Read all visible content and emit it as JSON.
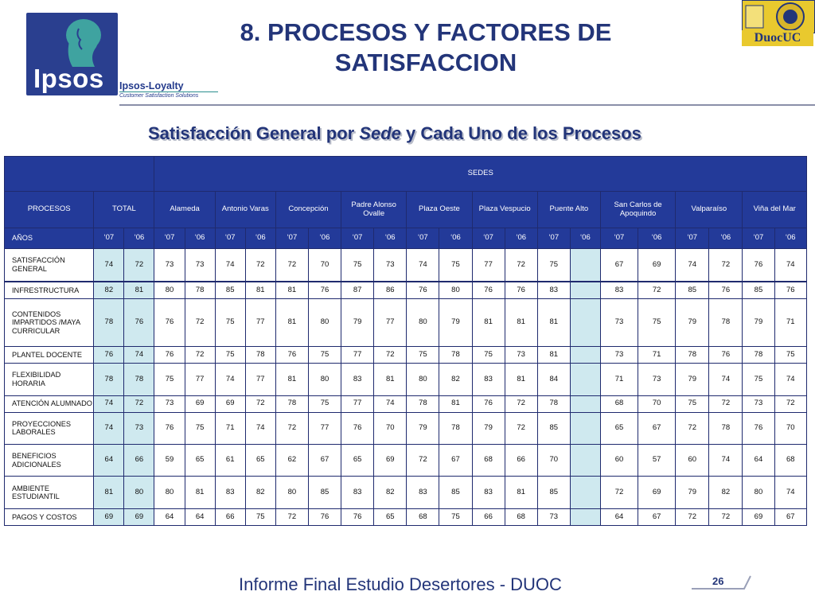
{
  "header": {
    "title_line1": "8. PROCESOS Y FACTORES DE",
    "title_line2": "SATISFACCION",
    "subtitle_pre": "Satisfacción General por ",
    "subtitle_em": "Sede",
    "subtitle_post": " y Cada Uno de los Procesos",
    "ipsos_logo": "Ipsos",
    "loyalty_brand": "Ipsos-Loyalty",
    "loyalty_tagline": "Customer Satisfaction Solutions",
    "duoc_logo": "DuocUC"
  },
  "table": {
    "sedes_label": "SEDES",
    "procesos_label": "PROCESOS",
    "total_label": "TOTAL",
    "anos_label": "AÑOS",
    "year_07": "‘07",
    "year_06": "‘06",
    "sedes": [
      "Alameda",
      "Antonio Varas",
      "Concepción",
      "Padre Alonso Ovalle",
      "Plaza Oeste",
      "Plaza Vespucio",
      "Puente Alto",
      "San Carlos de Apoquindo",
      "Valparaíso",
      "Viña del Mar"
    ],
    "rows": [
      {
        "name": "SATISFACCIÓN GENERAL",
        "values": [
          "74",
          "72",
          "73",
          "73",
          "74",
          "72",
          "72",
          "70",
          "75",
          "73",
          "74",
          "75",
          "77",
          "72",
          "75",
          "",
          "67",
          "69",
          "74",
          "72",
          "76",
          "74"
        ]
      },
      {
        "name": "INFRESTRUCTURA",
        "values": [
          "82",
          "81",
          "80",
          "78",
          "85",
          "81",
          "81",
          "76",
          "87",
          "86",
          "76",
          "80",
          "76",
          "76",
          "83",
          "",
          "83",
          "72",
          "85",
          "76",
          "85",
          "76"
        ]
      },
      {
        "name": "CONTENIDOS IMPARTIDOS /MAYA CURRICULAR",
        "values": [
          "78",
          "76",
          "76",
          "72",
          "75",
          "77",
          "81",
          "80",
          "79",
          "77",
          "80",
          "79",
          "81",
          "81",
          "81",
          "",
          "73",
          "75",
          "79",
          "78",
          "79",
          "71"
        ]
      },
      {
        "name": "PLANTEL DOCENTE",
        "values": [
          "76",
          "74",
          "76",
          "72",
          "75",
          "78",
          "76",
          "75",
          "77",
          "72",
          "75",
          "78",
          "75",
          "73",
          "81",
          "",
          "73",
          "71",
          "78",
          "76",
          "78",
          "75"
        ]
      },
      {
        "name": "FLEXIBILIDAD HORARIA",
        "values": [
          "78",
          "78",
          "75",
          "77",
          "74",
          "77",
          "81",
          "80",
          "83",
          "81",
          "80",
          "82",
          "83",
          "81",
          "84",
          "",
          "71",
          "73",
          "79",
          "74",
          "75",
          "74"
        ]
      },
      {
        "name": "ATENCIÓN ALUMNADO",
        "values": [
          "74",
          "72",
          "73",
          "69",
          "69",
          "72",
          "78",
          "75",
          "77",
          "74",
          "78",
          "81",
          "76",
          "72",
          "78",
          "",
          "68",
          "70",
          "75",
          "72",
          "73",
          "72"
        ]
      },
      {
        "name": "PROYECCIONES LABORALES",
        "values": [
          "74",
          "73",
          "76",
          "75",
          "71",
          "74",
          "72",
          "77",
          "76",
          "70",
          "79",
          "78",
          "79",
          "72",
          "85",
          "",
          "65",
          "67",
          "72",
          "78",
          "76",
          "70"
        ]
      },
      {
        "name": "BENEFICIOS ADICIONALES",
        "values": [
          "64",
          "66",
          "59",
          "65",
          "61",
          "65",
          "62",
          "67",
          "65",
          "69",
          "72",
          "67",
          "68",
          "66",
          "70",
          "",
          "60",
          "57",
          "60",
          "74",
          "64",
          "68"
        ]
      },
      {
        "name": "AMBIENTE ESTUDIANTIL",
        "values": [
          "81",
          "80",
          "80",
          "81",
          "83",
          "82",
          "80",
          "85",
          "83",
          "82",
          "83",
          "85",
          "83",
          "81",
          "85",
          "",
          "72",
          "69",
          "79",
          "82",
          "80",
          "74"
        ]
      },
      {
        "name": "PAGOS Y COSTOS",
        "values": [
          "69",
          "69",
          "64",
          "64",
          "66",
          "75",
          "72",
          "76",
          "76",
          "65",
          "68",
          "75",
          "66",
          "68",
          "73",
          "",
          "64",
          "67",
          "72",
          "72",
          "69",
          "67"
        ]
      }
    ]
  },
  "footer": {
    "text": "Informe Final Estudio Desertores - DUOC",
    "page": "26"
  },
  "colors": {
    "navy": "#233579",
    "header_blue": "#233a99",
    "total_fill": "#cfe9ef",
    "duoc_yellow": "#e9c92e"
  }
}
